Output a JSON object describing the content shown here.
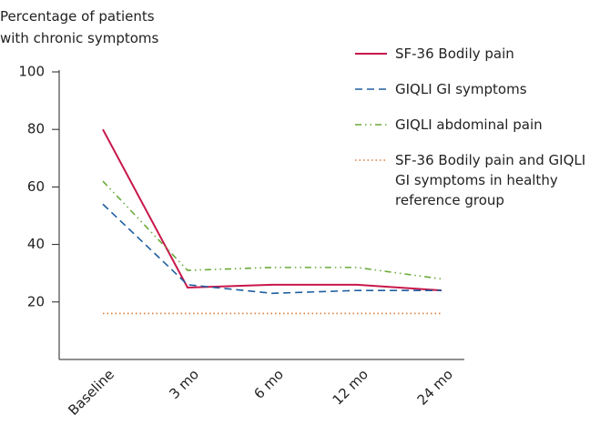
{
  "chart_data": {
    "type": "line",
    "y_axis_label": "Percentage of patients with chronic symptoms",
    "categories": [
      "Baseline",
      "3 mo",
      "6 mo",
      "12 mo",
      "24 mo"
    ],
    "series": [
      {
        "name": "SF-36 Bodily pain",
        "color": "#c8174a",
        "dash": "solid",
        "values": [
          80,
          25,
          26,
          26,
          24
        ]
      },
      {
        "name": "GIQLI GI symptoms",
        "color": "#1f5fa0",
        "dash": "dashed",
        "values": [
          54,
          26,
          23,
          24,
          24
        ]
      },
      {
        "name": "GIQLI abdominal pain",
        "color": "#6aaa3a",
        "dash": "dashdotdot",
        "values": [
          62,
          31,
          32,
          32,
          28
        ]
      },
      {
        "name": "SF-36 Bodily pain and GIQLI GI symptoms in healthy reference group",
        "color": "#e07b39",
        "dash": "dotted",
        "values": [
          16,
          16,
          16,
          16,
          16
        ]
      }
    ],
    "ylim": [
      0,
      100
    ],
    "yticks": [
      20,
      40,
      60,
      80,
      100
    ],
    "legend": "right"
  }
}
